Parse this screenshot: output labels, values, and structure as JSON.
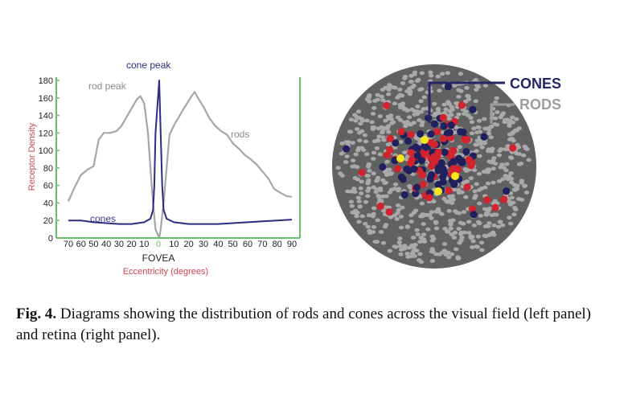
{
  "chart_data": {
    "type": "line",
    "title": "",
    "ylabel": "Receptor Density",
    "xlabel": "Eccentricity (degrees)",
    "center_label": "FOVEA",
    "ylim": [
      0,
      180
    ],
    "yticks": [
      0,
      20,
      40,
      60,
      80,
      100,
      120,
      140,
      160,
      180
    ],
    "xlim": [
      -70,
      90
    ],
    "xtick_labels": [
      "70",
      "60",
      "50",
      "40",
      "30",
      "20",
      "10",
      "0",
      "10",
      "20",
      "30",
      "40",
      "50",
      "60",
      "70",
      "80",
      "90"
    ],
    "annotations": {
      "cone_peak": "cone peak",
      "rod_peak": "rod peak",
      "rods": "rods",
      "cones": "cones"
    },
    "series": [
      {
        "name": "rods",
        "x": [
          -70,
          -65,
          -60,
          -55,
          -50,
          -46,
          -42,
          -37,
          -32,
          -28,
          -24,
          -20,
          -16,
          -13,
          -10,
          -7,
          -5,
          -3,
          -1,
          0,
          1,
          3,
          5,
          7,
          9,
          11,
          13,
          16,
          19,
          22,
          24,
          27,
          30,
          34,
          38,
          42,
          46,
          50,
          54,
          58,
          62,
          66,
          70,
          74,
          78,
          82,
          86,
          90
        ],
        "values": [
          42,
          58,
          72,
          78,
          82,
          112,
          120,
          120,
          122,
          128,
          138,
          148,
          158,
          162,
          154,
          120,
          80,
          40,
          10,
          0,
          10,
          40,
          80,
          118,
          125,
          132,
          137,
          146,
          154,
          162,
          167,
          158,
          150,
          137,
          128,
          122,
          118,
          108,
          102,
          95,
          90,
          84,
          76,
          68,
          56,
          52,
          48,
          47
        ]
      },
      {
        "name": "cones",
        "x": [
          -70,
          -60,
          -50,
          -40,
          -30,
          -20,
          -10,
          -5,
          -3,
          -2,
          -1,
          0,
          1,
          2,
          3,
          5,
          10,
          20,
          30,
          40,
          50,
          60,
          70,
          80,
          90
        ],
        "values": [
          20,
          20,
          18,
          17,
          16,
          16,
          18,
          22,
          32,
          60,
          120,
          180,
          120,
          60,
          32,
          22,
          18,
          16,
          16,
          16,
          17,
          18,
          19,
          20,
          21
        ]
      }
    ]
  },
  "retina": {
    "legend_cones": "CONES",
    "legend_rods": "RODS",
    "colors": {
      "disc": "#616161",
      "rods": "#a9a9a9",
      "cones_red": "#d2232e",
      "cones_blue": "#20205e",
      "cones_yellow": "#f4e81c",
      "cones_label": "#252566",
      "rods_label": "#9d9d9d"
    }
  },
  "colors": {
    "axis": "#6cbf6a",
    "rod_curve": "#a6a6a6",
    "cone_curve": "#2c2c80",
    "red_label": "#d04452"
  },
  "caption": {
    "label": "Fig. 4.",
    "text": " Diagrams showing the distribution of rods and cones across the visual field (left panel) and retina (right panel)."
  }
}
